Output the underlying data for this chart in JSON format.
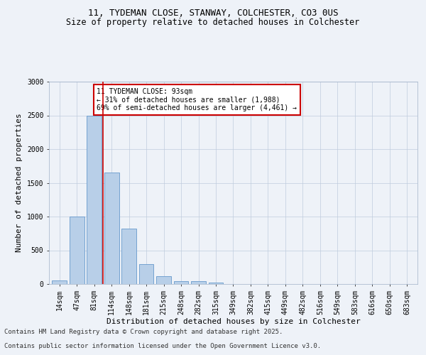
{
  "title1": "11, TYDEMAN CLOSE, STANWAY, COLCHESTER, CO3 0US",
  "title2": "Size of property relative to detached houses in Colchester",
  "xlabel": "Distribution of detached houses by size in Colchester",
  "ylabel": "Number of detached properties",
  "categories": [
    "14sqm",
    "47sqm",
    "81sqm",
    "114sqm",
    "148sqm",
    "181sqm",
    "215sqm",
    "248sqm",
    "282sqm",
    "315sqm",
    "349sqm",
    "382sqm",
    "415sqm",
    "449sqm",
    "482sqm",
    "516sqm",
    "549sqm",
    "583sqm",
    "616sqm",
    "650sqm",
    "683sqm"
  ],
  "values": [
    55,
    1000,
    2500,
    1650,
    820,
    300,
    120,
    45,
    40,
    25,
    5,
    0,
    0,
    0,
    0,
    0,
    0,
    0,
    0,
    0,
    0
  ],
  "bar_color": "#b8cfe8",
  "bar_edge_color": "#6699cc",
  "vline_x_pos": 2.5,
  "vline_color": "#cc0000",
  "annotation_text": "11 TYDEMAN CLOSE: 93sqm\n← 31% of detached houses are smaller (1,988)\n69% of semi-detached houses are larger (4,461) →",
  "annotation_box_color": "#ffffff",
  "annotation_box_edge": "#cc0000",
  "ylim": [
    0,
    3000
  ],
  "yticks": [
    0,
    500,
    1000,
    1500,
    2000,
    2500,
    3000
  ],
  "bg_color": "#eef2f8",
  "plot_bg_color": "#eef2f8",
  "footer1": "Contains HM Land Registry data © Crown copyright and database right 2025.",
  "footer2": "Contains public sector information licensed under the Open Government Licence v3.0.",
  "title_fontsize": 9,
  "subtitle_fontsize": 8.5,
  "axis_label_fontsize": 8,
  "tick_fontsize": 7,
  "footer_fontsize": 6.5,
  "annot_fontsize": 7
}
